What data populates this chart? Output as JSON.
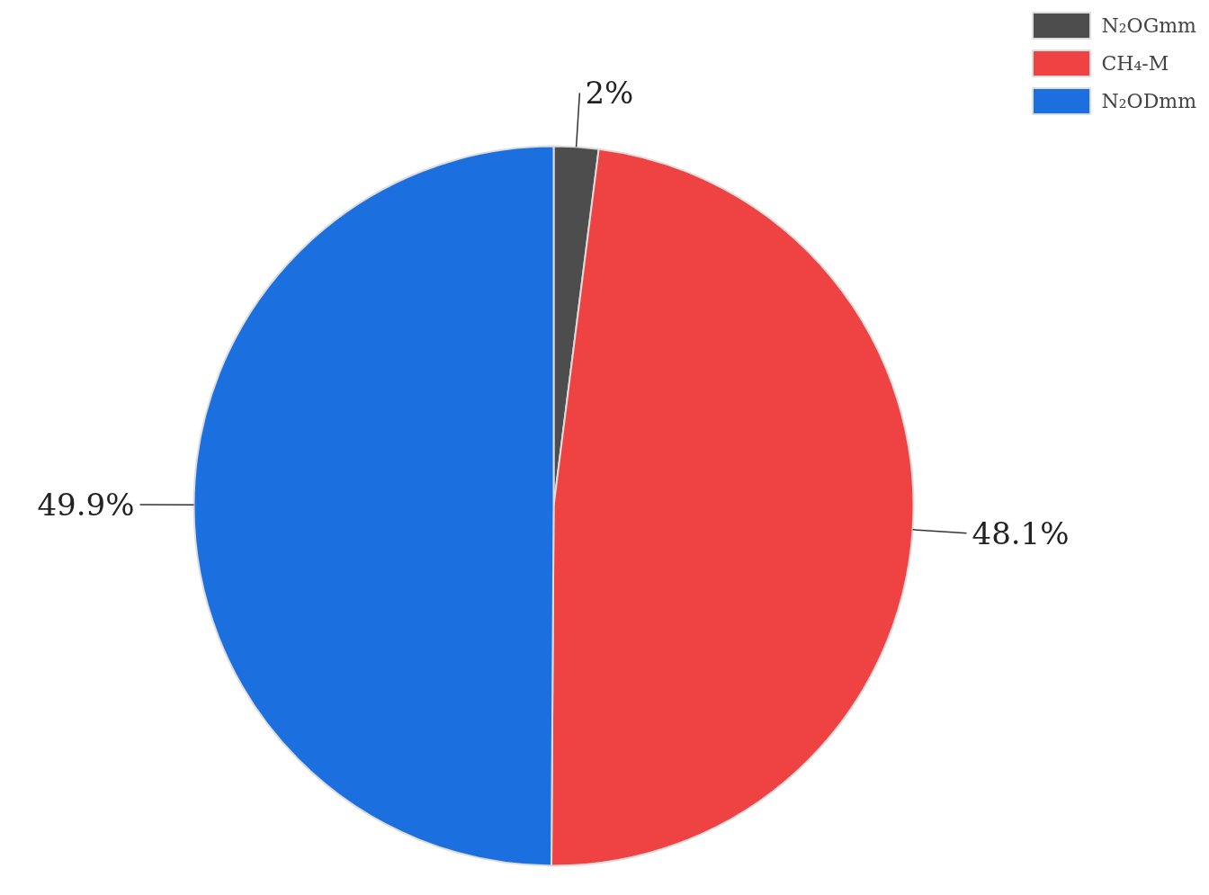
{
  "chart_data": {
    "type": "pie",
    "categories": [
      "N₂OGmm",
      "CH₄-M",
      "N₂ODmm"
    ],
    "values": [
      2,
      48.1,
      49.9
    ],
    "colors": [
      "#4d4d4d",
      "#ef4242",
      "#1b6fdf"
    ],
    "value_labels": [
      "2%",
      "48.1%",
      "49.9%"
    ],
    "legend": "top right"
  }
}
